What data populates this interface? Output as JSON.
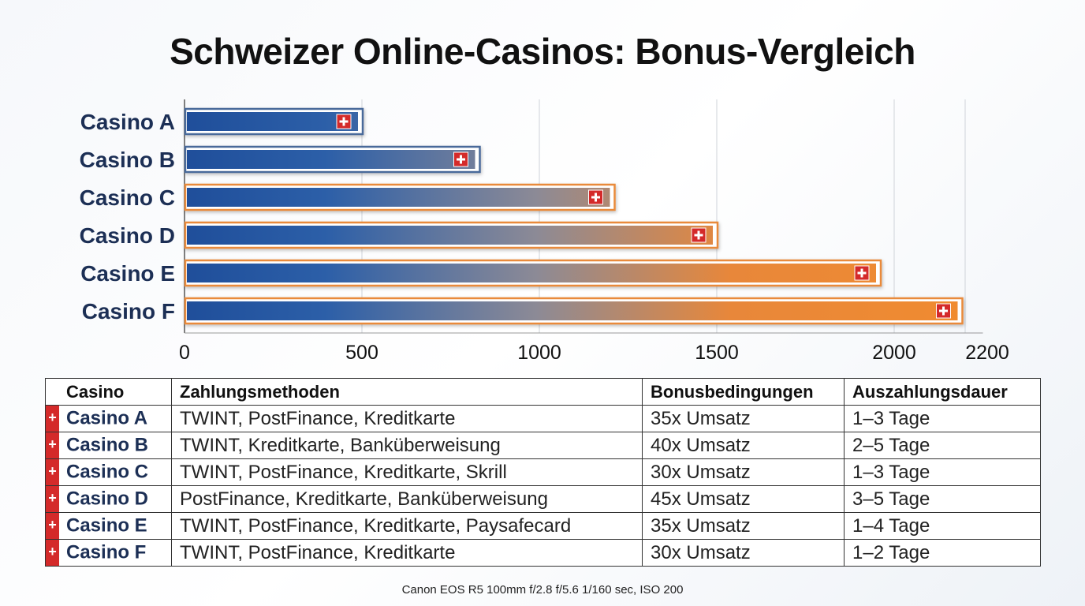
{
  "title": "Schweizer Online-Casinos: Bonus-Vergleich",
  "chart_data": {
    "type": "bar",
    "orientation": "horizontal",
    "categories": [
      "Casino A",
      "Casino B",
      "Casino C",
      "Casino D",
      "Casino E",
      "Casino F"
    ],
    "values": [
      500,
      830,
      1210,
      1500,
      1960,
      2190
    ],
    "x_ticks": [
      "0",
      "500",
      "1000",
      "1500",
      "2000",
      "2200"
    ],
    "xlim": [
      0,
      2250
    ],
    "grid": true,
    "bar_gradient": [
      "#1f4e9a",
      "#f08b30"
    ],
    "flag_color": "#d42a2a"
  },
  "table": {
    "headers": [
      "Casino",
      "Zahlungsmethoden",
      "Bonusbedingungen",
      "Auszahlungsdauer"
    ],
    "rows": [
      {
        "flag": "+",
        "casino": "Casino A",
        "methods": "TWINT, PostFinance, Kreditkarte",
        "terms": "35x Umsatz",
        "payout": "1–3 Tage"
      },
      {
        "flag": "+",
        "casino": "Casino B",
        "methods": "TWINT, Kreditkarte, Banküberweisung",
        "terms": "40x Umsatz",
        "payout": "2–5 Tage"
      },
      {
        "flag": "+",
        "casino": "Casino C",
        "methods": "TWINT, PostFinance, Kreditkarte, Skrill",
        "terms": "30x Umsatz",
        "payout": "1–3 Tage"
      },
      {
        "flag": "+",
        "casino": "Casino D",
        "methods": "PostFinance, Kreditkarte, Banküberweisung",
        "terms": "45x Umsatz",
        "payout": "3–5 Tage"
      },
      {
        "flag": "+",
        "casino": "Casino E",
        "methods": "TWINT, PostFinance, Kreditkarte, Paysafecard",
        "terms": "35x Umsatz",
        "payout": "1–4 Tage"
      },
      {
        "flag": "+",
        "casino": "Casino F",
        "methods": "TWINT, PostFinance, Kreditkarte",
        "terms": "30x Umsatz",
        "payout": "1–2 Tage"
      }
    ]
  },
  "footer": "Canon EOS R5 100mm f/2.8 f/5.6 1/160 sec, ISO 200"
}
